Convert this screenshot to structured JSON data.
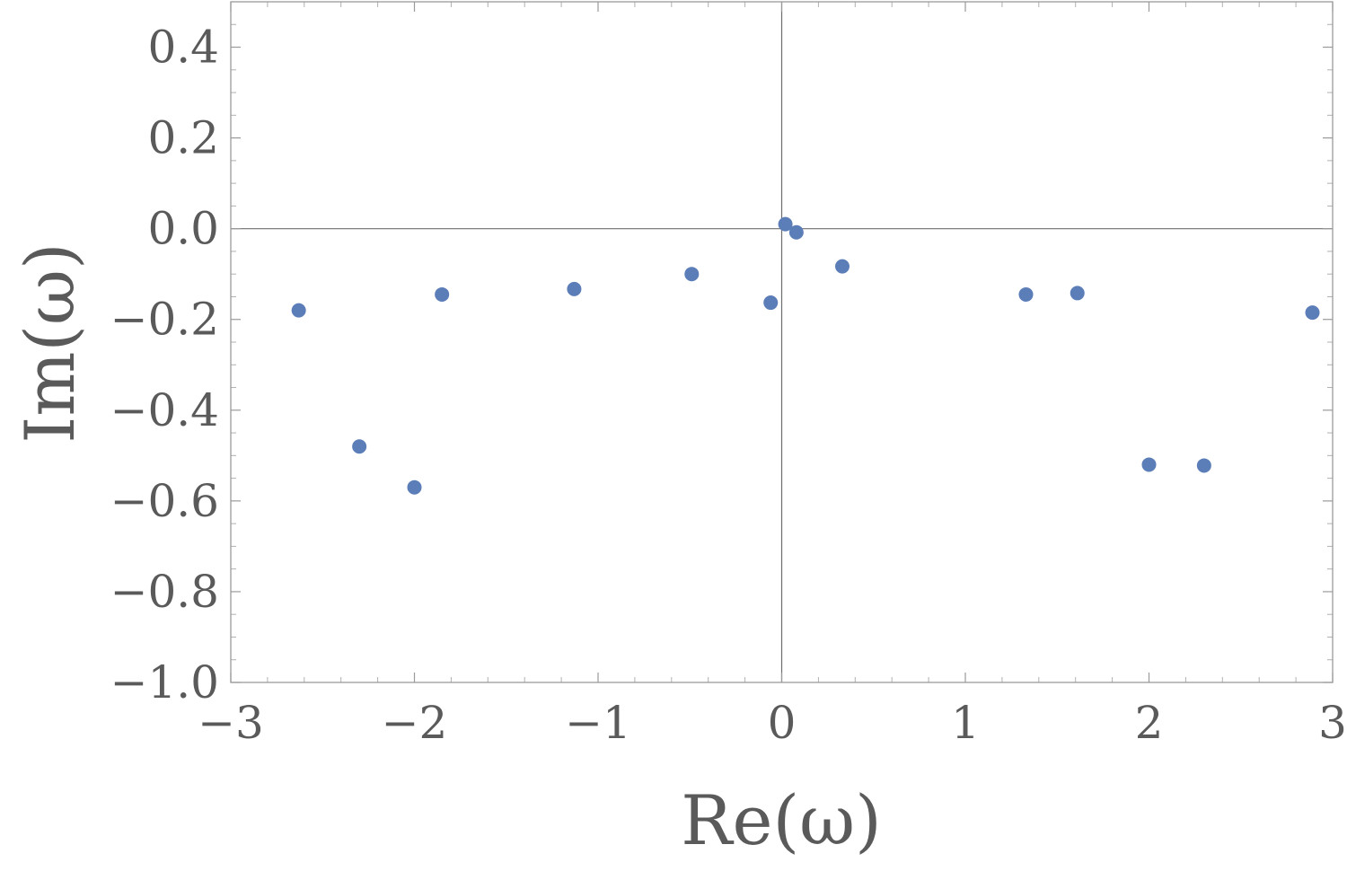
{
  "chart_data": {
    "type": "scatter",
    "xlabel": "Re(ω)",
    "ylabel": "Im(ω)",
    "xlim": [
      -3,
      3
    ],
    "ylim": [
      -1.0,
      0.5
    ],
    "x_ticks": [
      -3,
      -2,
      -1,
      0,
      1,
      2,
      3
    ],
    "x_tick_labels": [
      "−3",
      "−2",
      "−1",
      "0",
      "1",
      "2",
      "3"
    ],
    "y_ticks": [
      0.4,
      0.2,
      0.0,
      -0.2,
      -0.4,
      -0.6,
      -0.8,
      -1.0
    ],
    "y_tick_labels": [
      "0.4",
      "0.2",
      "0.0",
      "−0.2",
      "−0.4",
      "−0.6",
      "−0.8",
      "−1.0"
    ],
    "grid": false,
    "frame": true,
    "zero_axes": true,
    "marker_color": "#5b7db8",
    "points": [
      {
        "x": -2.63,
        "y": -0.18
      },
      {
        "x": -2.3,
        "y": -0.48
      },
      {
        "x": -2.0,
        "y": -0.57
      },
      {
        "x": -1.85,
        "y": -0.145
      },
      {
        "x": -1.13,
        "y": -0.133
      },
      {
        "x": -0.49,
        "y": -0.1
      },
      {
        "x": -0.06,
        "y": -0.163
      },
      {
        "x": 0.02,
        "y": 0.01
      },
      {
        "x": 0.08,
        "y": -0.008
      },
      {
        "x": 0.33,
        "y": -0.083
      },
      {
        "x": 1.33,
        "y": -0.145
      },
      {
        "x": 1.61,
        "y": -0.142
      },
      {
        "x": 2.0,
        "y": -0.52
      },
      {
        "x": 2.3,
        "y": -0.522
      },
      {
        "x": 2.89,
        "y": -0.185
      }
    ]
  }
}
